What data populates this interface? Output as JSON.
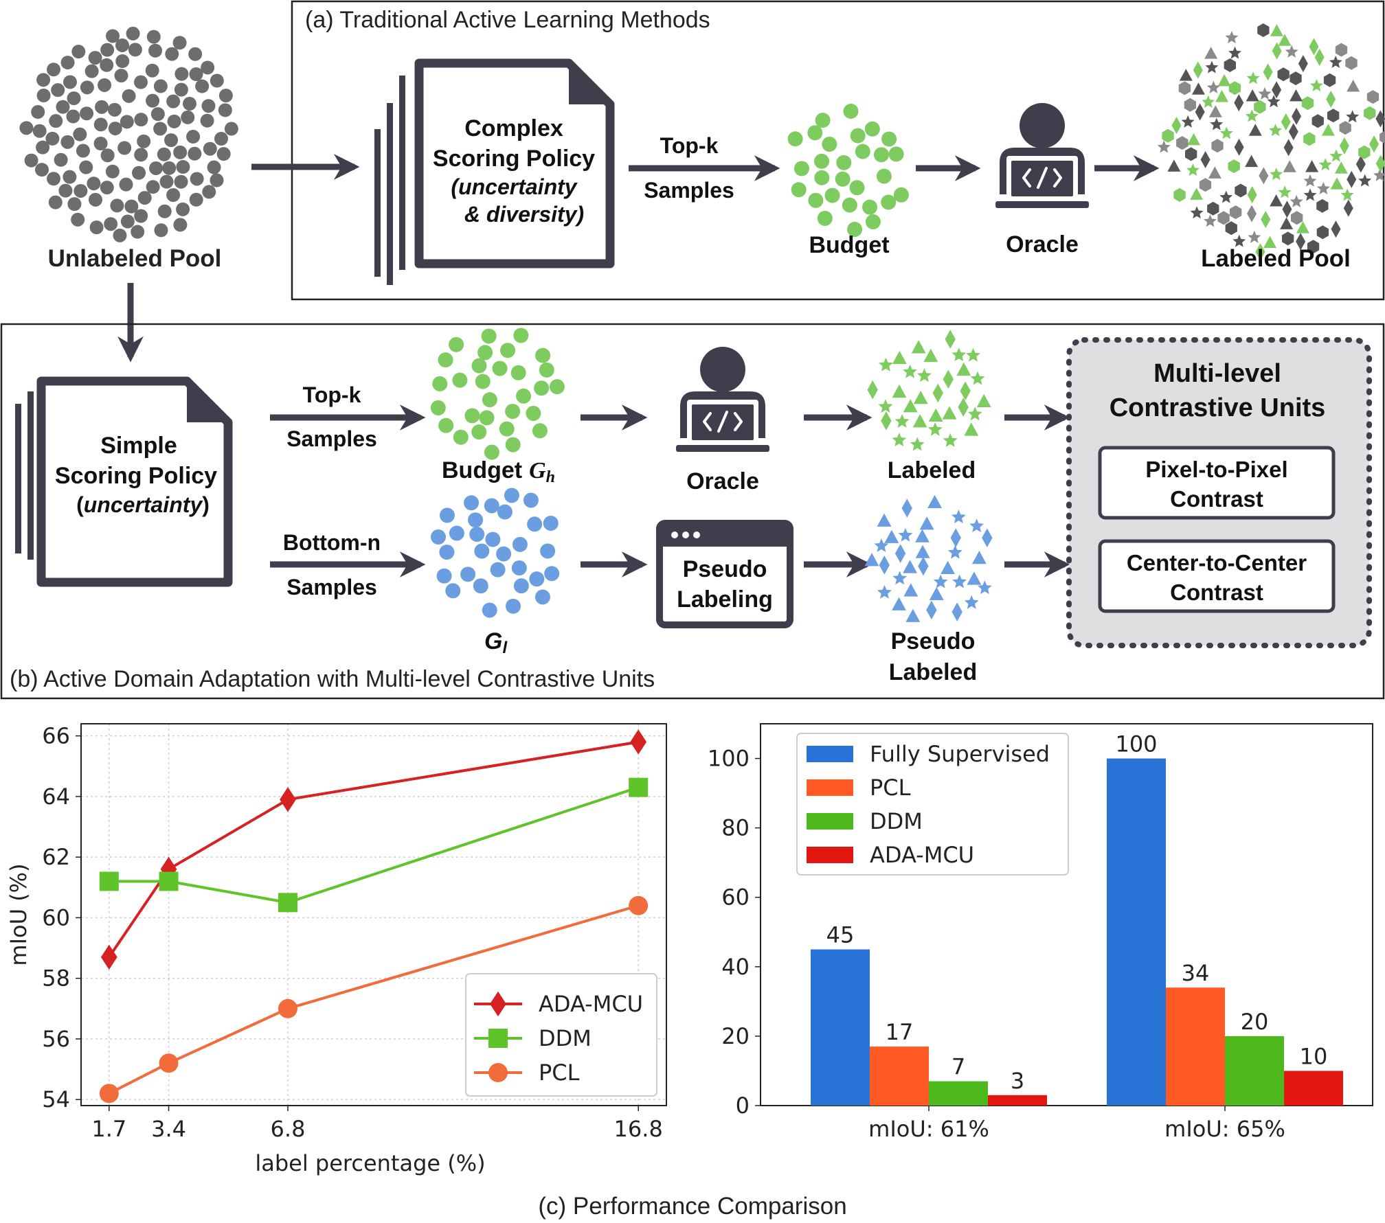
{
  "panel_a": {
    "title": "(a) Traditional Active Learning Methods",
    "unlabeled_pool": "Unlabeled Pool",
    "policy": {
      "line1": "Complex",
      "line2": "Scoring Policy",
      "line3": "(uncertainty",
      "line4": "& diversity)"
    },
    "arrow_label_top": "Top-k",
    "arrow_label_bottom": "Samples",
    "budget": "Budget",
    "oracle": "Oracle",
    "labeled_pool": "Labeled Pool"
  },
  "panel_b": {
    "title": "(b) Active Domain Adaptation with Multi-level Contrastive Units",
    "policy": {
      "line1": "Simple",
      "line2": "Scoring Policy",
      "line3_open": "(",
      "line3_italic": "uncertainty",
      "line3_close": ")"
    },
    "top_arrow_top": "Top-k",
    "top_arrow_bottom": "Samples",
    "bottom_arrow_top": "Bottom-n",
    "bottom_arrow_bottom": "Samples",
    "budget": "Budget",
    "budget_symbol": "G",
    "budget_sub": "h",
    "low_symbol": "G",
    "low_sub": "l",
    "oracle": "Oracle",
    "pseudo_box": {
      "line1": "Pseudo",
      "line2": "Labeling"
    },
    "labeled": "Labeled",
    "pseudo_labeled": {
      "line1": "Pseudo",
      "line2": "Labeled"
    },
    "mcu": {
      "title1": "Multi-level",
      "title2": "Contrastive Units",
      "unit1": {
        "line1": "Pixel-to-Pixel",
        "line2": "Contrast"
      },
      "unit2": {
        "line1": "Center-to-Center",
        "line2": "Contrast"
      }
    }
  },
  "panel_c_caption": "(c) Performance Comparison",
  "chart_data": [
    {
      "type": "line",
      "xlabel": "label percentage (%)",
      "ylabel": "mIoU (%)",
      "x": [
        1.7,
        3.4,
        6.8,
        16.8
      ],
      "x_tick_labels": [
        "1.7",
        "3.4",
        "6.8",
        "16.8"
      ],
      "ylim": [
        53.8,
        66.4
      ],
      "y_ticks": [
        54,
        56,
        58,
        60,
        62,
        64,
        66
      ],
      "grid": true,
      "legend_position": "bottom-right",
      "series": [
        {
          "name": "ADA-MCU",
          "marker": "diamond",
          "color": "#d62222",
          "values": [
            58.7,
            61.6,
            63.9,
            65.8
          ]
        },
        {
          "name": "DDM",
          "marker": "square",
          "color": "#5ec42a",
          "values": [
            61.2,
            61.2,
            60.5,
            64.3
          ]
        },
        {
          "name": "PCL",
          "marker": "circle",
          "color": "#f26b3a",
          "values": [
            54.2,
            55.2,
            57.0,
            60.4
          ]
        }
      ]
    },
    {
      "type": "bar",
      "categories": [
        "mIoU: 61%",
        "mIoU: 65%"
      ],
      "ylim": [
        0,
        110
      ],
      "y_ticks": [
        0,
        20,
        40,
        60,
        80,
        100
      ],
      "grid": false,
      "legend_position": "top-left",
      "series": [
        {
          "name": "Fully Supervised",
          "color": "#2a73d6",
          "values": [
            45,
            100
          ],
          "labels": [
            "45",
            "100"
          ]
        },
        {
          "name": "PCL",
          "color": "#ff5a24",
          "values": [
            17,
            34
          ],
          "labels": [
            "17",
            "34"
          ]
        },
        {
          "name": "DDM",
          "color": "#4cb81c",
          "values": [
            7,
            20
          ],
          "labels": [
            "7",
            "20"
          ]
        },
        {
          "name": "ADA-MCU",
          "color": "#e0160f",
          "values": [
            3,
            10
          ],
          "labels": [
            "3",
            "10"
          ]
        }
      ]
    }
  ]
}
